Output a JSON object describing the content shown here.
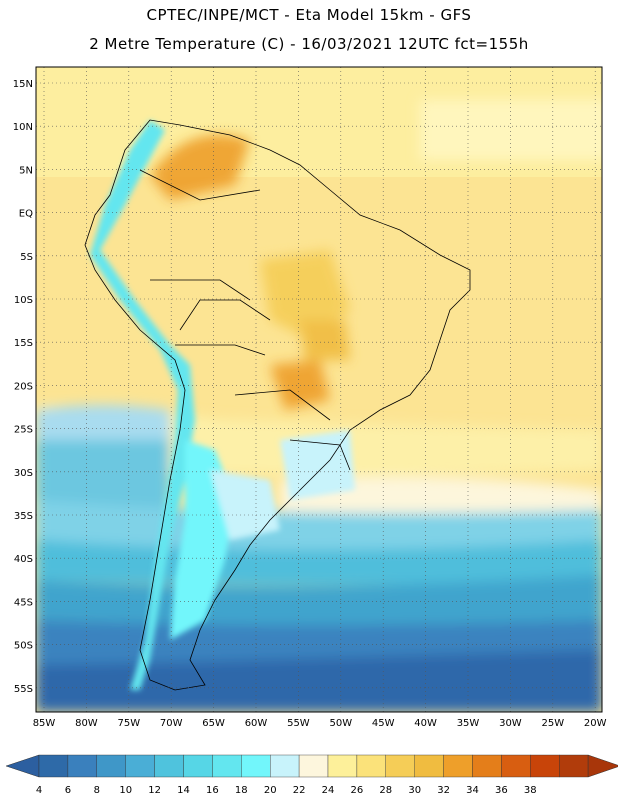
{
  "title_line1": "CPTEC/INPE/MCT -   Eta Model 15km - GFS",
  "title_line2": "2 Metre Temperature (C) - 16/03/2021 12UTC fct=155h",
  "lat_labels": [
    "15N",
    "10N",
    "5N",
    "EQ",
    "5S",
    "10S",
    "15S",
    "20S",
    "25S",
    "30S",
    "35S",
    "40S",
    "45S",
    "50S",
    "55S"
  ],
  "lon_labels": [
    "85W",
    "80W",
    "75W",
    "70W",
    "65W",
    "60W",
    "55W",
    "50W",
    "45W",
    "40W",
    "35W",
    "30W",
    "25W",
    "20W"
  ],
  "colorbar": {
    "ticks": [
      "4",
      "6",
      "8",
      "10",
      "12",
      "14",
      "16",
      "18",
      "20",
      "22",
      "24",
      "26",
      "28",
      "30",
      "32",
      "34",
      "36",
      "38"
    ],
    "colors": [
      "#2e6aa8",
      "#3a80bd",
      "#3f97c8",
      "#4aaed6",
      "#4fc3dd",
      "#56d6e6",
      "#63e6ef",
      "#72f6fb",
      "#c8f3fb",
      "#fdf6dd",
      "#fdf09a",
      "#fbe27a",
      "#f5cd57",
      "#f0bc40",
      "#ee9f2a",
      "#e47e1a",
      "#d85e11",
      "#c84409",
      "#b13c0b"
    ],
    "low_color": "#2c5fa0",
    "high_color": "#a8360a"
  }
}
